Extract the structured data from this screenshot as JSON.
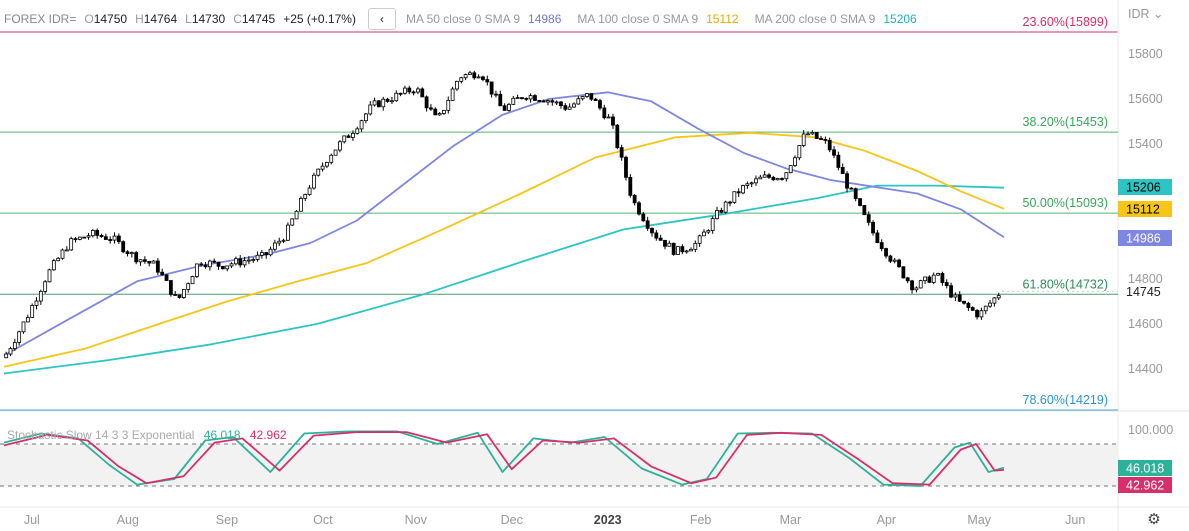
{
  "symbol": {
    "name": "FOREX IDR=",
    "open_label": "O",
    "open": "14750",
    "high_label": "H",
    "high": "14764",
    "low_label": "L",
    "low": "14730",
    "close_label": "C",
    "close": "14745",
    "change": "+25 (+0.17%)"
  },
  "currency_label": "IDR",
  "collapse_icon": "chevron-left-icon",
  "moving_averages": [
    {
      "label": "MA 50 close 0 SMA 9",
      "value": "14986",
      "color": "#7f86e0"
    },
    {
      "label": "MA 100 close 0 SMA 9",
      "value": "15112",
      "color": "#f5c518"
    },
    {
      "label": "MA 200 close 0 SMA 9",
      "value": "15206",
      "color": "#2ec4c4"
    }
  ],
  "stochastic": {
    "label": "Stochastic Slow 14 3 3 Exponential",
    "k_value": "46.018",
    "d_value": "42.962",
    "k_color": "#2bb39a",
    "d_color": "#d6306a",
    "axis_top": "100.000"
  },
  "last_price": "14745",
  "settings_icon": "gear-icon",
  "chart_data": {
    "type": "candlestick",
    "y_ticks": [
      14400,
      14600,
      14800,
      15400,
      15600,
      15800
    ],
    "x_ticks": [
      "Jul",
      "Aug",
      "Sep",
      "Oct",
      "Nov",
      "Dec",
      "2023",
      "Feb",
      "Mar",
      "Apr",
      "May",
      "Jun"
    ],
    "fib_levels": [
      {
        "label": "23.60%(15899)",
        "value": 15899,
        "color": "#d6306a"
      },
      {
        "label": "38.20%(15453)",
        "value": 15453,
        "color": "#3aa65a"
      },
      {
        "label": "50.00%(15093)",
        "value": 15093,
        "color": "#3aa65a"
      },
      {
        "label": "61.80%(14732)",
        "value": 14732,
        "color": "#2e8b57"
      },
      {
        "label": "78.60%(14219)",
        "value": 14219,
        "color": "#2a96c8"
      }
    ],
    "price_points": [
      [
        "2022-06-28",
        14450
      ],
      [
        "2022-07-05",
        14620
      ],
      [
        "2022-07-12",
        14820
      ],
      [
        "2022-07-19",
        14960
      ],
      [
        "2022-07-26",
        15000
      ],
      [
        "2022-08-02",
        14980
      ],
      [
        "2022-08-09",
        14900
      ],
      [
        "2022-08-16",
        14860
      ],
      [
        "2022-08-23",
        14700
      ],
      [
        "2022-08-30",
        14880
      ],
      [
        "2022-09-06",
        14860
      ],
      [
        "2022-09-13",
        14880
      ],
      [
        "2022-09-20",
        14900
      ],
      [
        "2022-09-27",
        15000
      ],
      [
        "2022-10-04",
        15200
      ],
      [
        "2022-10-11",
        15350
      ],
      [
        "2022-10-18",
        15450
      ],
      [
        "2022-10-25",
        15570
      ],
      [
        "2022-11-01",
        15610
      ],
      [
        "2022-11-08",
        15650
      ],
      [
        "2022-11-15",
        15500
      ],
      [
        "2022-11-22",
        15700
      ],
      [
        "2022-11-29",
        15720
      ],
      [
        "2022-12-06",
        15550
      ],
      [
        "2022-12-13",
        15620
      ],
      [
        "2022-12-20",
        15600
      ],
      [
        "2022-12-27",
        15560
      ],
      [
        "2023-01-03",
        15620
      ],
      [
        "2023-01-10",
        15500
      ],
      [
        "2023-01-17",
        15150
      ],
      [
        "2023-01-24",
        15000
      ],
      [
        "2023-01-31",
        14920
      ],
      [
        "2023-02-07",
        14960
      ],
      [
        "2023-02-14",
        15100
      ],
      [
        "2023-02-21",
        15200
      ],
      [
        "2023-02-28",
        15250
      ],
      [
        "2023-03-07",
        15260
      ],
      [
        "2023-03-14",
        15450
      ],
      [
        "2023-03-21",
        15400
      ],
      [
        "2023-03-28",
        15200
      ],
      [
        "2023-04-04",
        15020
      ],
      [
        "2023-04-11",
        14880
      ],
      [
        "2023-04-18",
        14760
      ],
      [
        "2023-04-25",
        14820
      ],
      [
        "2023-05-02",
        14700
      ],
      [
        "2023-05-09",
        14640
      ],
      [
        "2023-05-16",
        14745
      ]
    ],
    "ma50_points": [
      [
        "2022-06-28",
        14460
      ],
      [
        "2022-07-20",
        14630
      ],
      [
        "2022-08-10",
        14790
      ],
      [
        "2022-08-31",
        14860
      ],
      [
        "2022-09-21",
        14910
      ],
      [
        "2022-10-05",
        14960
      ],
      [
        "2022-10-20",
        15060
      ],
      [
        "2022-11-04",
        15220
      ],
      [
        "2022-11-20",
        15390
      ],
      [
        "2022-12-06",
        15530
      ],
      [
        "2022-12-21",
        15600
      ],
      [
        "2023-01-09",
        15630
      ],
      [
        "2023-01-23",
        15590
      ],
      [
        "2023-02-07",
        15470
      ],
      [
        "2023-02-22",
        15360
      ],
      [
        "2023-03-08",
        15290
      ],
      [
        "2023-03-22",
        15240
      ],
      [
        "2023-04-05",
        15210
      ],
      [
        "2023-04-19",
        15180
      ],
      [
        "2023-05-03",
        15110
      ],
      [
        "2023-05-17",
        14986
      ]
    ],
    "ma100_points": [
      [
        "2022-06-28",
        14410
      ],
      [
        "2022-07-24",
        14490
      ],
      [
        "2022-08-17",
        14600
      ],
      [
        "2022-09-08",
        14700
      ],
      [
        "2022-10-01",
        14790
      ],
      [
        "2022-10-23",
        14870
      ],
      [
        "2022-11-15",
        15010
      ],
      [
        "2022-12-12",
        15180
      ],
      [
        "2023-01-05",
        15340
      ],
      [
        "2023-01-31",
        15430
      ],
      [
        "2023-02-24",
        15450
      ],
      [
        "2023-03-17",
        15430
      ],
      [
        "2023-04-02",
        15370
      ],
      [
        "2023-04-19",
        15280
      ],
      [
        "2023-05-03",
        15190
      ],
      [
        "2023-05-17",
        15112
      ]
    ],
    "ma200_points": [
      [
        "2022-06-28",
        14380
      ],
      [
        "2022-08-01",
        14440
      ],
      [
        "2022-09-03",
        14510
      ],
      [
        "2022-10-07",
        14600
      ],
      [
        "2022-11-10",
        14730
      ],
      [
        "2022-12-13",
        14880
      ],
      [
        "2023-01-14",
        15020
      ],
      [
        "2023-02-16",
        15090
      ],
      [
        "2023-03-18",
        15160
      ],
      [
        "2023-04-06",
        15215
      ],
      [
        "2023-04-25",
        15215
      ],
      [
        "2023-05-17",
        15206
      ]
    ],
    "stoch_k_points": [
      [
        "2022-06-28",
        82
      ],
      [
        "2022-07-10",
        95
      ],
      [
        "2022-07-22",
        88
      ],
      [
        "2022-08-01",
        50
      ],
      [
        "2022-08-10",
        22
      ],
      [
        "2022-08-22",
        30
      ],
      [
        "2022-09-01",
        85
      ],
      [
        "2022-09-10",
        90
      ],
      [
        "2022-09-22",
        40
      ],
      [
        "2022-10-03",
        95
      ],
      [
        "2022-10-17",
        98
      ],
      [
        "2022-11-02",
        98
      ],
      [
        "2022-11-15",
        80
      ],
      [
        "2022-11-28",
        96
      ],
      [
        "2022-12-06",
        40
      ],
      [
        "2022-12-16",
        88
      ],
      [
        "2022-12-28",
        82
      ],
      [
        "2023-01-08",
        90
      ],
      [
        "2023-01-20",
        45
      ],
      [
        "2023-02-02",
        22
      ],
      [
        "2023-02-10",
        30
      ],
      [
        "2023-02-20",
        95
      ],
      [
        "2023-03-03",
        96
      ],
      [
        "2023-03-16",
        95
      ],
      [
        "2023-03-28",
        60
      ],
      [
        "2023-04-08",
        22
      ],
      [
        "2023-04-20",
        20
      ],
      [
        "2023-05-01",
        75
      ],
      [
        "2023-05-06",
        82
      ],
      [
        "2023-05-12",
        40
      ],
      [
        "2023-05-17",
        46
      ]
    ],
    "stoch_d_points": [
      [
        "2022-06-28",
        78
      ],
      [
        "2022-07-12",
        93
      ],
      [
        "2022-07-25",
        85
      ],
      [
        "2022-08-04",
        48
      ],
      [
        "2022-08-13",
        24
      ],
      [
        "2022-08-25",
        34
      ],
      [
        "2022-09-04",
        82
      ],
      [
        "2022-09-13",
        88
      ],
      [
        "2022-09-25",
        42
      ],
      [
        "2022-10-06",
        92
      ],
      [
        "2022-10-20",
        97
      ],
      [
        "2022-11-05",
        97
      ],
      [
        "2022-11-18",
        82
      ],
      [
        "2022-12-01",
        94
      ],
      [
        "2022-12-09",
        44
      ],
      [
        "2022-12-19",
        85
      ],
      [
        "2022-12-31",
        82
      ],
      [
        "2023-01-11",
        88
      ],
      [
        "2023-01-23",
        48
      ],
      [
        "2023-02-05",
        24
      ],
      [
        "2023-02-13",
        32
      ],
      [
        "2023-02-23",
        93
      ],
      [
        "2023-03-06",
        96
      ],
      [
        "2023-03-19",
        93
      ],
      [
        "2023-03-31",
        58
      ],
      [
        "2023-04-11",
        24
      ],
      [
        "2023-04-23",
        22
      ],
      [
        "2023-05-03",
        72
      ],
      [
        "2023-05-08",
        80
      ],
      [
        "2023-05-14",
        42
      ],
      [
        "2023-05-17",
        43
      ]
    ],
    "stoch_bands": [
      20,
      80
    ]
  }
}
